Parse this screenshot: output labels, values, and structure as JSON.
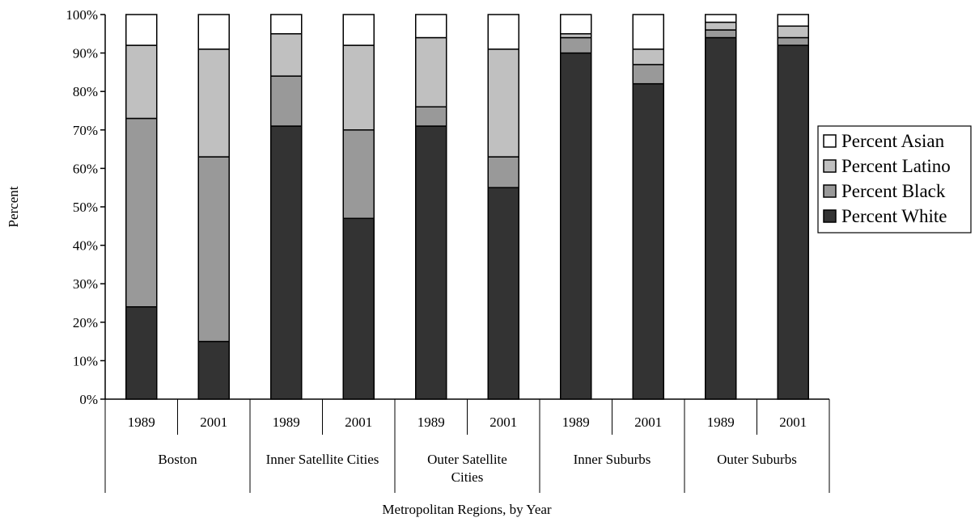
{
  "chart_data": {
    "type": "bar",
    "stacked": true,
    "title": "",
    "xlabel": "Metropolitan Regions, by Year",
    "ylabel": "Percent",
    "ylim": [
      0,
      100
    ],
    "yticks": [
      "0%",
      "10%",
      "20%",
      "30%",
      "40%",
      "50%",
      "60%",
      "70%",
      "80%",
      "90%",
      "100%"
    ],
    "grid": false,
    "legend_position": "right",
    "groups": [
      {
        "label_lines": [
          "Boston"
        ],
        "years": [
          "1989",
          "2001"
        ]
      },
      {
        "label_lines": [
          "Inner Satellite Cities"
        ],
        "years": [
          "1989",
          "2001"
        ]
      },
      {
        "label_lines": [
          "Outer Satellite",
          "Cities"
        ],
        "years": [
          "1989",
          "2001"
        ]
      },
      {
        "label_lines": [
          "Inner Suburbs"
        ],
        "years": [
          "1989",
          "2001"
        ]
      },
      {
        "label_lines": [
          "Outer Suburbs"
        ],
        "years": [
          "1989",
          "2001"
        ]
      }
    ],
    "series": [
      {
        "name": "Percent White",
        "color": "#333333",
        "values": [
          24,
          15,
          71,
          47,
          71,
          55,
          90,
          82,
          94,
          92
        ]
      },
      {
        "name": "Percent Black",
        "color": "#999999",
        "values": [
          49,
          48,
          13,
          23,
          5,
          8,
          4,
          5,
          2,
          2
        ]
      },
      {
        "name": "Percent Latino",
        "color": "#c0c0c0",
        "values": [
          19,
          28,
          11,
          22,
          18,
          28,
          1,
          4,
          2,
          3
        ]
      },
      {
        "name": "Percent Asian",
        "color": "#ffffff",
        "values": [
          8,
          9,
          5,
          8,
          6,
          9,
          5,
          9,
          2,
          3
        ]
      }
    ],
    "legend_order": [
      "Percent Asian",
      "Percent Latino",
      "Percent Black",
      "Percent White"
    ]
  }
}
